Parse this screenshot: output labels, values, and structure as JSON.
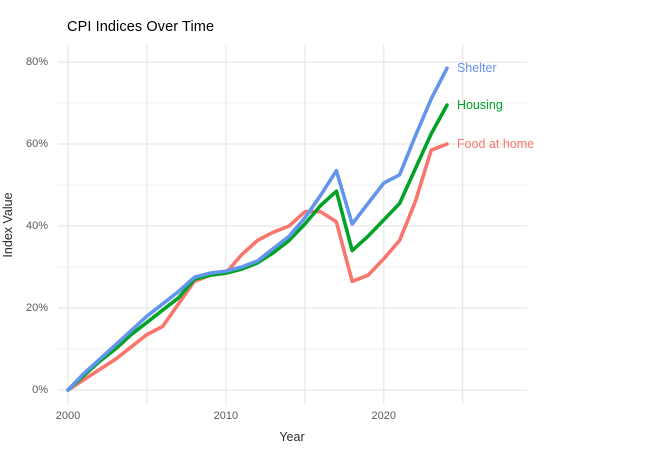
{
  "title": "CPI Indices Over Time",
  "axes": {
    "x_label": "Year",
    "y_label": "Index Value",
    "x_tick_labels": [
      "2000",
      "2010",
      "2020"
    ],
    "x_tick_values": [
      2000,
      2010,
      2020
    ],
    "y_tick_labels": [
      "0%",
      "20%",
      "40%",
      "60%",
      "80%"
    ],
    "y_tick_values": [
      0,
      20,
      40,
      60,
      80
    ]
  },
  "colors": {
    "shelter": "#6495ED",
    "housing": "#00A327",
    "food_at_home": "#F8766D",
    "grid_major": "#E2E2E2",
    "grid_minor": "#F0F0F0"
  },
  "chart_data": {
    "type": "line",
    "title": "CPI Indices Over Time",
    "xlabel": "Year",
    "ylabel": "Index Value",
    "xlim": [
      1999.3,
      2029
    ],
    "ylim": [
      0,
      80
    ],
    "x_major_gridlines": [
      2000,
      2005,
      2010,
      2015,
      2020,
      2025
    ],
    "y_major_gridlines": [
      0,
      20,
      40,
      60,
      80
    ],
    "y_minor_gridlines": [
      10,
      30,
      50,
      70
    ],
    "legend_position": "direct labels at right end of each line",
    "x": [
      2000,
      2001,
      2002,
      2003,
      2004,
      2005,
      2006,
      2007,
      2008,
      2009,
      2010,
      2011,
      2012,
      2013,
      2014,
      2015,
      2016,
      2017,
      2018,
      2019,
      2020,
      2021,
      2022,
      2023,
      2024
    ],
    "series": [
      {
        "name": "Food at home",
        "color": "#F8766D",
        "values": [
          0,
          2.5,
          5,
          7.5,
          10.5,
          13.5,
          15.5,
          21,
          26.5,
          28,
          28.5,
          33,
          36.5,
          38.5,
          40,
          43.5,
          43.5,
          41,
          26.5,
          28,
          32,
          36.5,
          46,
          58.5,
          60
        ]
      },
      {
        "name": "Housing",
        "color": "#00A327",
        "values": [
          0,
          3.5,
          7,
          10,
          13.5,
          16.5,
          19.5,
          22.5,
          27,
          28,
          28.5,
          29.5,
          31,
          33.5,
          36.5,
          40.5,
          45,
          48.5,
          34,
          37.5,
          41.5,
          45.5,
          54,
          62.5,
          69.5
        ]
      },
      {
        "name": "Shelter",
        "color": "#6495ED",
        "values": [
          0,
          4,
          7.5,
          11,
          14.5,
          18,
          21,
          24,
          27.5,
          28.5,
          29,
          30,
          31.5,
          34.5,
          37.5,
          42,
          47.5,
          53.5,
          40.5,
          45.5,
          50.5,
          52.5,
          62,
          71,
          78.5
        ]
      }
    ]
  }
}
